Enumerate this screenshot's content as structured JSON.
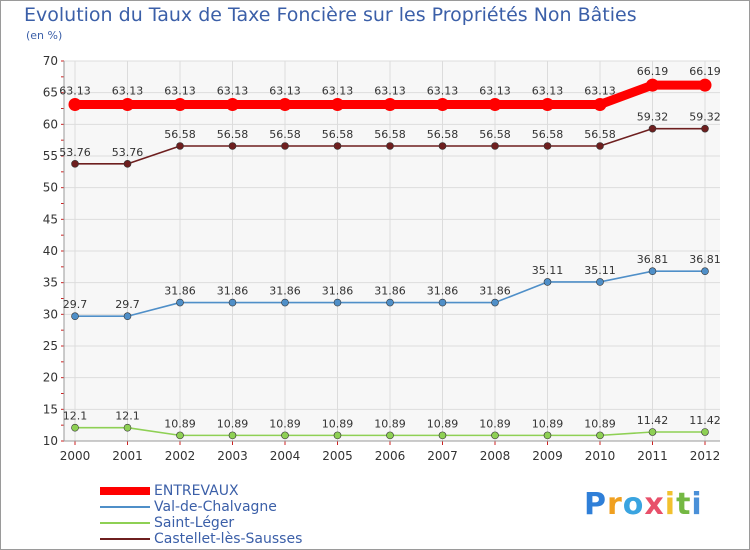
{
  "chart_data": {
    "type": "line",
    "title": "Evolution du Taux de Taxe Foncière sur les Propriétés Non Bâties",
    "ylabel": "(en %)",
    "xlabel": "",
    "ylim": [
      10,
      70
    ],
    "yticks": [
      10,
      15,
      20,
      25,
      30,
      35,
      40,
      45,
      50,
      55,
      60,
      65,
      70
    ],
    "categories": [
      "2000",
      "2001",
      "2002",
      "2003",
      "2004",
      "2005",
      "2006",
      "2007",
      "2008",
      "2009",
      "2010",
      "2011",
      "2012"
    ],
    "series": [
      {
        "name": "ENTREVAUX",
        "color": "#ff0000",
        "values": [
          63.13,
          63.13,
          63.13,
          63.13,
          63.13,
          63.13,
          63.13,
          63.13,
          63.13,
          63.13,
          63.13,
          66.19,
          66.19
        ],
        "labels": [
          "63.13",
          "63.13",
          "63.13",
          "63.13",
          "63.13",
          "63.13",
          "63.13",
          "63.13",
          "63.13",
          "63.13",
          "63.13",
          "66.19",
          "66.19"
        ]
      },
      {
        "name": "Val-de-Chalvagne",
        "color": "#4f8fc8",
        "values": [
          29.7,
          29.7,
          31.86,
          31.86,
          31.86,
          31.86,
          31.86,
          31.86,
          31.86,
          35.11,
          35.11,
          36.81,
          36.81
        ],
        "labels": [
          "29.7",
          "29.7",
          "31.86",
          "31.86",
          "31.86",
          "31.86",
          "31.86",
          "31.86",
          "31.86",
          "35.11",
          "35.11",
          "36.81",
          "36.81"
        ]
      },
      {
        "name": "Saint-Léger",
        "color": "#8ed054",
        "values": [
          12.1,
          12.1,
          10.89,
          10.89,
          10.89,
          10.89,
          10.89,
          10.89,
          10.89,
          10.89,
          10.89,
          11.42,
          11.42
        ],
        "labels": [
          "12.1",
          "12.1",
          "10.89",
          "10.89",
          "10.89",
          "10.89",
          "10.89",
          "10.89",
          "10.89",
          "10.89",
          "10.89",
          "11.42",
          "11.42"
        ]
      },
      {
        "name": "Castellet-lès-Sausses",
        "color": "#6e1f1f",
        "values": [
          53.76,
          53.76,
          56.58,
          56.58,
          56.58,
          56.58,
          56.58,
          56.58,
          56.58,
          56.58,
          56.58,
          59.32,
          59.32
        ],
        "labels": [
          "53.76",
          "53.76",
          "56.58",
          "56.58",
          "56.58",
          "56.58",
          "56.58",
          "56.58",
          "56.58",
          "56.58",
          "56.58",
          "59.32",
          "59.32"
        ]
      }
    ],
    "legend_order": [
      "ENTREVAUX",
      "Val-de-Chalvagne",
      "Saint-Léger",
      "Castellet-lès-Sausses"
    ],
    "legend_position": "bottom-left",
    "grid": true
  },
  "logo": {
    "letters": [
      "P",
      "r",
      "o",
      "x",
      "i",
      "t",
      "i"
    ]
  }
}
